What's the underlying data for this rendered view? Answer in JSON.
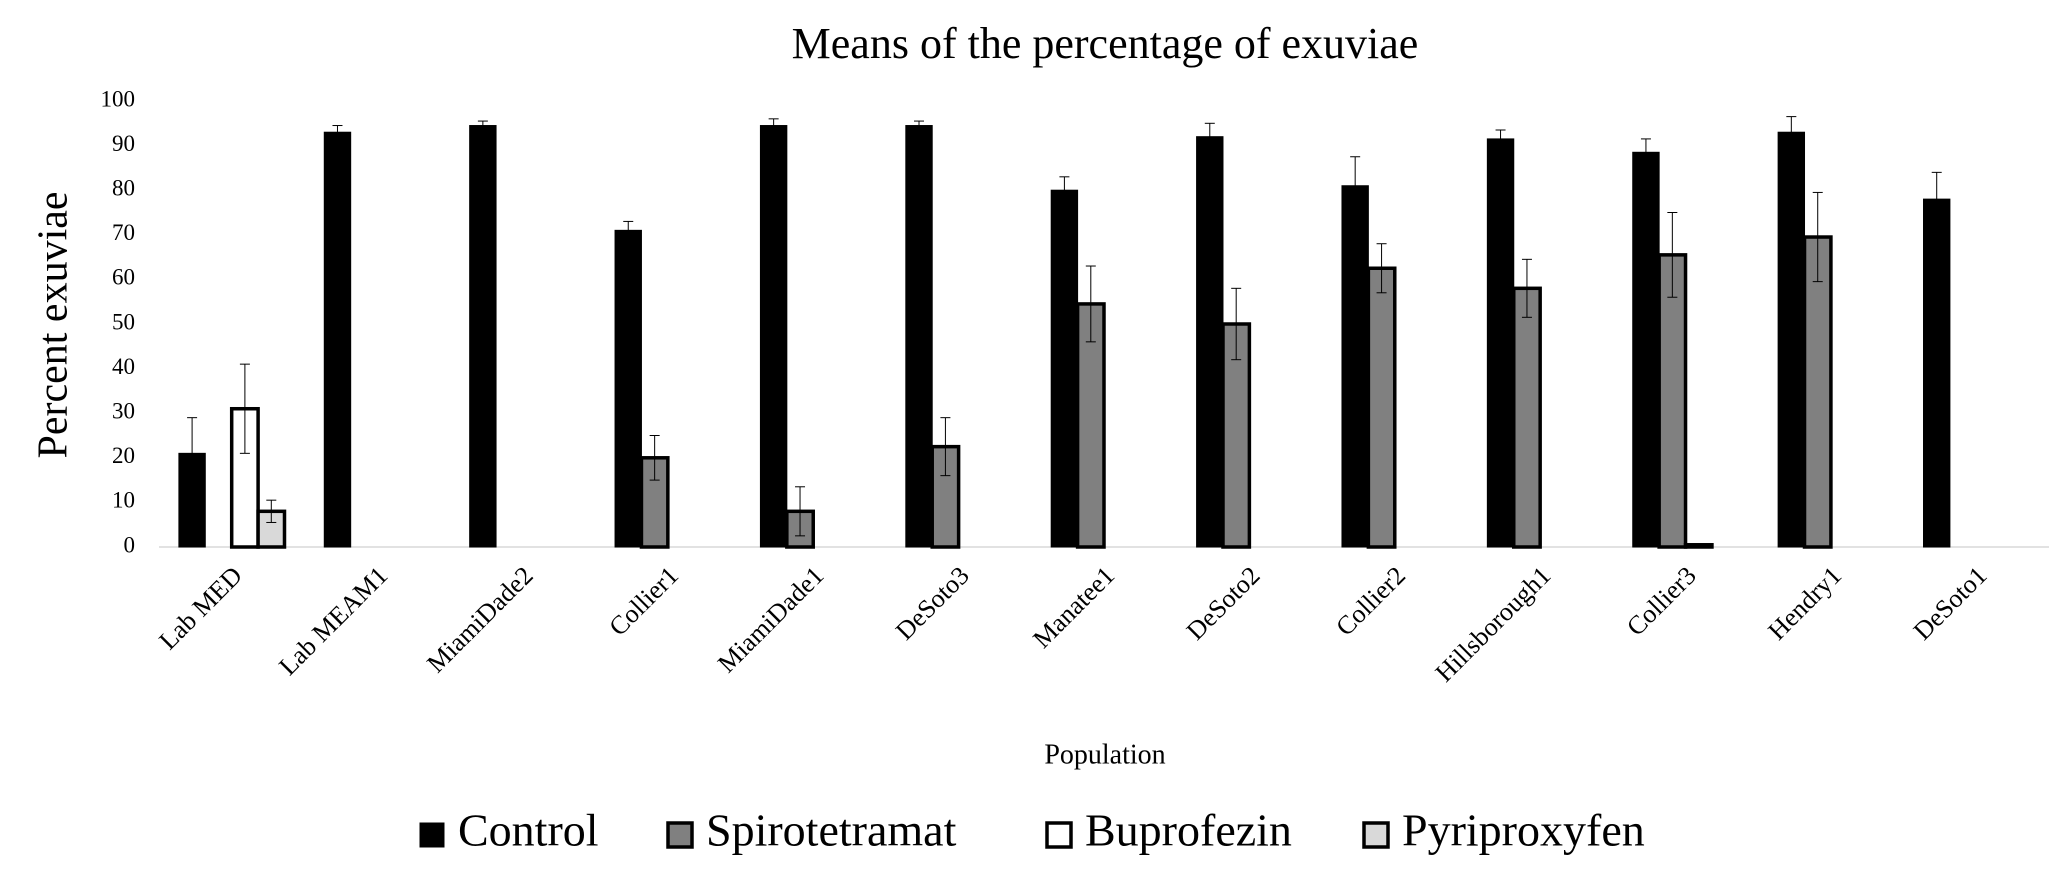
{
  "chart_data": {
    "type": "bar",
    "title": "Means of the percentage of exuviae",
    "xlabel": "Population",
    "ylabel": "Percent exuviae",
    "categories": [
      "Lab MED",
      "Lab MEAM1",
      "MiamiDade2",
      "Collier1",
      "MiamiDade1",
      "DeSoto3",
      "Manatee1",
      "DeSoto2",
      "Collier2",
      "Hillsborough1",
      "Collier3",
      "Hendry1",
      "DeSoto1"
    ],
    "series": [
      {
        "name": "Control",
        "color": "#000000",
        "values": [
          21,
          93,
          94.5,
          71,
          94.5,
          94.5,
          80,
          92,
          81,
          91.5,
          88.5,
          93,
          78
        ],
        "errors": [
          8,
          1.5,
          1,
          2,
          1.5,
          1,
          3,
          3,
          6.5,
          2,
          3,
          3.5,
          6
        ]
      },
      {
        "name": "Spirotetramat",
        "color": "#808080",
        "values": [
          null,
          null,
          null,
          20,
          8,
          22.5,
          54.5,
          50,
          62.5,
          58,
          65.5,
          69.5,
          null
        ],
        "errors": [
          null,
          null,
          null,
          5,
          5.5,
          6.5,
          8.5,
          8,
          5.5,
          6.5,
          9.5,
          10,
          null
        ]
      },
      {
        "name": "Buprofezin",
        "color": "#ffffff",
        "values": [
          31,
          null,
          null,
          null,
          null,
          null,
          null,
          null,
          null,
          null,
          0.5,
          null,
          null
        ],
        "errors": [
          10,
          null,
          null,
          null,
          null,
          null,
          null,
          null,
          null,
          null,
          null,
          null,
          null
        ]
      },
      {
        "name": "Pyriproxyfen",
        "color": "#d9d9d9",
        "values": [
          8,
          null,
          null,
          null,
          null,
          null,
          null,
          null,
          null,
          null,
          null,
          null,
          null
        ],
        "errors": [
          2.5,
          null,
          null,
          null,
          null,
          null,
          null,
          null,
          null,
          null,
          null,
          null,
          null
        ]
      }
    ],
    "ylim": [
      0,
      100
    ],
    "yticks": [
      0,
      10,
      20,
      30,
      40,
      50,
      60,
      70,
      80,
      90,
      100
    ],
    "grid": false,
    "legend": "bottom"
  }
}
